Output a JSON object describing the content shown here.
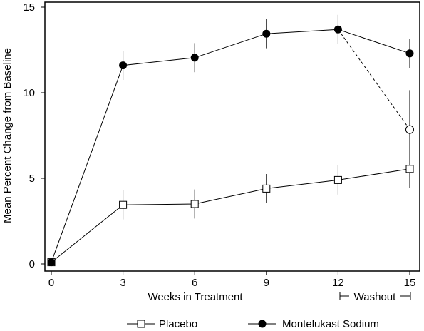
{
  "chart_data": {
    "type": "line",
    "xlabel": "Weeks in Treatment",
    "ylabel": "Mean Percent Change from Baseline",
    "xlim": [
      0,
      15
    ],
    "ylim": [
      0,
      15
    ],
    "xticks": [
      "0",
      "3",
      "6",
      "9",
      "12",
      "15"
    ],
    "yticks": [
      "0",
      "5",
      "10",
      "15"
    ],
    "washout_label": "Washout",
    "series": [
      {
        "name": "Placebo",
        "marker": "open-square",
        "x": [
          0,
          3,
          6,
          9,
          12,
          15
        ],
        "y": [
          0.1,
          3.45,
          3.5,
          4.4,
          4.9,
          5.55
        ],
        "err": [
          0,
          0.85,
          0.85,
          0.85,
          0.85,
          1.1
        ]
      },
      {
        "name": "Montelukast Sodium",
        "marker": "filled-circle",
        "x": [
          0,
          3,
          6,
          9,
          12,
          15
        ],
        "y": [
          0.1,
          11.6,
          12.05,
          13.45,
          13.7,
          12.3
        ],
        "err": [
          0,
          0.85,
          0.85,
          0.85,
          0.85,
          0.85
        ]
      }
    ],
    "washout_point": {
      "x": 15,
      "y": 7.85,
      "err": 2.3,
      "marker": "open-circle",
      "line": "dashed"
    },
    "legend_position": "bottom"
  }
}
